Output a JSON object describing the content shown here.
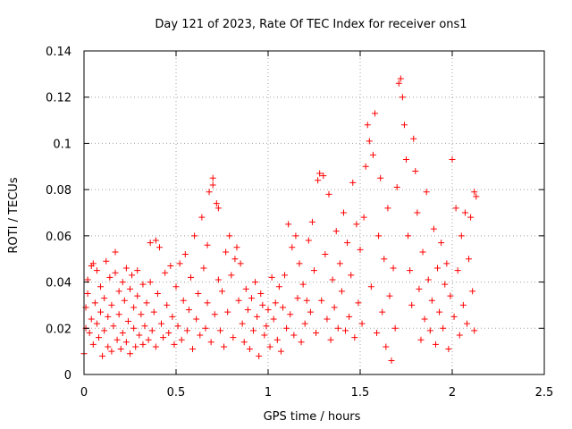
{
  "chart_data": {
    "type": "scatter",
    "title": "Day 121 of 2023, Rate Of TEC Index for receiver ons1",
    "xlabel": "GPS time / hours",
    "ylabel": "ROTI / TECUs",
    "xlim": [
      0,
      2.5
    ],
    "ylim": [
      0,
      0.14
    ],
    "xticks": [
      0,
      0.5,
      1,
      1.5,
      2,
      2.5
    ],
    "xtick_labels": [
      "0",
      "0.5",
      "1",
      "1.5",
      "2",
      "2.5"
    ],
    "yticks": [
      0,
      0.02,
      0.04,
      0.06,
      0.08,
      0.1,
      0.12,
      0.14
    ],
    "ytick_labels": [
      "0",
      "0.02",
      "0.04",
      "0.06",
      "0.08",
      "0.1",
      "0.12",
      "0.14"
    ],
    "grid": true,
    "marker": "+",
    "color": "#ff0000",
    "series": [
      {
        "points": [
          [
            0.0,
            0.009
          ],
          [
            0.01,
            0.02
          ],
          [
            0.01,
            0.029
          ],
          [
            0.02,
            0.035
          ],
          [
            0.02,
            0.041
          ],
          [
            0.03,
            0.018
          ],
          [
            0.04,
            0.024
          ],
          [
            0.04,
            0.047
          ],
          [
            0.05,
            0.048
          ],
          [
            0.05,
            0.013
          ],
          [
            0.06,
            0.031
          ],
          [
            0.07,
            0.022
          ],
          [
            0.07,
            0.045
          ],
          [
            0.08,
            0.016
          ],
          [
            0.09,
            0.027
          ],
          [
            0.09,
            0.038
          ],
          [
            0.1,
            0.008
          ],
          [
            0.11,
            0.019
          ],
          [
            0.11,
            0.033
          ],
          [
            0.12,
            0.049
          ],
          [
            0.13,
            0.012
          ],
          [
            0.13,
            0.025
          ],
          [
            0.14,
            0.042
          ],
          [
            0.15,
            0.01
          ],
          [
            0.15,
            0.03
          ],
          [
            0.16,
            0.021
          ],
          [
            0.17,
            0.044
          ],
          [
            0.17,
            0.053
          ],
          [
            0.18,
            0.015
          ],
          [
            0.19,
            0.036
          ],
          [
            0.19,
            0.026
          ],
          [
            0.2,
            0.011
          ],
          [
            0.21,
            0.04
          ],
          [
            0.21,
            0.018
          ],
          [
            0.22,
            0.032
          ],
          [
            0.23,
            0.046
          ],
          [
            0.23,
            0.014
          ],
          [
            0.24,
            0.023
          ],
          [
            0.25,
            0.037
          ],
          [
            0.25,
            0.009
          ],
          [
            0.26,
            0.043
          ],
          [
            0.27,
            0.02
          ],
          [
            0.27,
            0.029
          ],
          [
            0.28,
            0.012
          ],
          [
            0.29,
            0.034
          ],
          [
            0.29,
            0.045
          ],
          [
            0.3,
            0.017
          ],
          [
            0.31,
            0.026
          ],
          [
            0.32,
            0.039
          ],
          [
            0.32,
            0.013
          ],
          [
            0.33,
            0.021
          ],
          [
            0.34,
            0.031
          ],
          [
            0.35,
            0.015
          ],
          [
            0.36,
            0.04
          ],
          [
            0.36,
            0.057
          ],
          [
            0.37,
            0.019
          ],
          [
            0.38,
            0.027
          ],
          [
            0.39,
            0.012
          ],
          [
            0.39,
            0.058
          ],
          [
            0.4,
            0.035
          ],
          [
            0.41,
            0.055
          ],
          [
            0.42,
            0.022
          ],
          [
            0.43,
            0.016
          ],
          [
            0.44,
            0.044
          ],
          [
            0.45,
            0.03
          ],
          [
            0.46,
            0.018
          ],
          [
            0.47,
            0.047
          ],
          [
            0.48,
            0.025
          ],
          [
            0.49,
            0.013
          ],
          [
            0.5,
            0.038
          ],
          [
            0.51,
            0.021
          ],
          [
            0.52,
            0.048
          ],
          [
            0.53,
            0.015
          ],
          [
            0.54,
            0.032
          ],
          [
            0.55,
            0.052
          ],
          [
            0.56,
            0.019
          ],
          [
            0.57,
            0.028
          ],
          [
            0.58,
            0.042
          ],
          [
            0.59,
            0.011
          ],
          [
            0.6,
            0.06
          ],
          [
            0.61,
            0.024
          ],
          [
            0.62,
            0.035
          ],
          [
            0.63,
            0.017
          ],
          [
            0.64,
            0.068
          ],
          [
            0.65,
            0.046
          ],
          [
            0.66,
            0.02
          ],
          [
            0.67,
            0.031
          ],
          [
            0.67,
            0.056
          ],
          [
            0.68,
            0.079
          ],
          [
            0.69,
            0.014
          ],
          [
            0.7,
            0.085
          ],
          [
            0.7,
            0.082
          ],
          [
            0.71,
            0.026
          ],
          [
            0.72,
            0.074
          ],
          [
            0.73,
            0.072
          ],
          [
            0.73,
            0.041
          ],
          [
            0.74,
            0.019
          ],
          [
            0.75,
            0.036
          ],
          [
            0.76,
            0.012
          ],
          [
            0.77,
            0.053
          ],
          [
            0.78,
            0.027
          ],
          [
            0.79,
            0.06
          ],
          [
            0.8,
            0.043
          ],
          [
            0.81,
            0.016
          ],
          [
            0.82,
            0.05
          ],
          [
            0.83,
            0.055
          ],
          [
            0.84,
            0.032
          ],
          [
            0.85,
            0.048
          ],
          [
            0.86,
            0.022
          ],
          [
            0.87,
            0.014
          ],
          [
            0.88,
            0.037
          ],
          [
            0.89,
            0.028
          ],
          [
            0.9,
            0.011
          ],
          [
            0.91,
            0.033
          ],
          [
            0.92,
            0.019
          ],
          [
            0.93,
            0.04
          ],
          [
            0.94,
            0.025
          ],
          [
            0.95,
            0.008
          ],
          [
            0.96,
            0.035
          ],
          [
            0.97,
            0.03
          ],
          [
            0.98,
            0.017
          ],
          [
            0.99,
            0.021
          ],
          [
            1.0,
            0.028
          ],
          [
            1.01,
            0.012
          ],
          [
            1.02,
            0.042
          ],
          [
            1.03,
            0.024
          ],
          [
            1.04,
            0.031
          ],
          [
            1.05,
            0.015
          ],
          [
            1.06,
            0.038
          ],
          [
            1.07,
            0.01
          ],
          [
            1.08,
            0.029
          ],
          [
            1.09,
            0.043
          ],
          [
            1.1,
            0.02
          ],
          [
            1.11,
            0.065
          ],
          [
            1.12,
            0.026
          ],
          [
            1.13,
            0.055
          ],
          [
            1.14,
            0.017
          ],
          [
            1.15,
            0.06
          ],
          [
            1.16,
            0.033
          ],
          [
            1.17,
            0.048
          ],
          [
            1.18,
            0.014
          ],
          [
            1.19,
            0.039
          ],
          [
            1.2,
            0.022
          ],
          [
            1.21,
            0.032
          ],
          [
            1.22,
            0.058
          ],
          [
            1.23,
            0.027
          ],
          [
            1.24,
            0.066
          ],
          [
            1.25,
            0.045
          ],
          [
            1.26,
            0.018
          ],
          [
            1.27,
            0.084
          ],
          [
            1.28,
            0.087
          ],
          [
            1.29,
            0.032
          ],
          [
            1.3,
            0.086
          ],
          [
            1.31,
            0.052
          ],
          [
            1.32,
            0.024
          ],
          [
            1.33,
            0.078
          ],
          [
            1.34,
            0.015
          ],
          [
            1.35,
            0.041
          ],
          [
            1.36,
            0.029
          ],
          [
            1.37,
            0.062
          ],
          [
            1.38,
            0.02
          ],
          [
            1.39,
            0.048
          ],
          [
            1.4,
            0.036
          ],
          [
            1.41,
            0.07
          ],
          [
            1.42,
            0.019
          ],
          [
            1.43,
            0.057
          ],
          [
            1.44,
            0.025
          ],
          [
            1.45,
            0.043
          ],
          [
            1.46,
            0.083
          ],
          [
            1.47,
            0.016
          ],
          [
            1.48,
            0.065
          ],
          [
            1.49,
            0.031
          ],
          [
            1.5,
            0.054
          ],
          [
            1.51,
            0.022
          ],
          [
            1.52,
            0.068
          ],
          [
            1.53,
            0.09
          ],
          [
            1.54,
            0.108
          ],
          [
            1.55,
            0.101
          ],
          [
            1.56,
            0.038
          ],
          [
            1.57,
            0.095
          ],
          [
            1.58,
            0.113
          ],
          [
            1.59,
            0.018
          ],
          [
            1.6,
            0.06
          ],
          [
            1.61,
            0.085
          ],
          [
            1.62,
            0.027
          ],
          [
            1.63,
            0.05
          ],
          [
            1.64,
            0.012
          ],
          [
            1.65,
            0.072
          ],
          [
            1.66,
            0.034
          ],
          [
            1.67,
            0.006
          ],
          [
            1.68,
            0.046
          ],
          [
            1.69,
            0.02
          ],
          [
            1.7,
            0.081
          ],
          [
            1.71,
            0.126
          ],
          [
            1.72,
            0.128
          ],
          [
            1.73,
            0.12
          ],
          [
            1.74,
            0.108
          ],
          [
            1.75,
            0.093
          ],
          [
            1.76,
            0.06
          ],
          [
            1.77,
            0.045
          ],
          [
            1.78,
            0.03
          ],
          [
            1.79,
            0.102
          ],
          [
            1.8,
            0.088
          ],
          [
            1.81,
            0.07
          ],
          [
            1.82,
            0.037
          ],
          [
            1.83,
            0.015
          ],
          [
            1.84,
            0.053
          ],
          [
            1.85,
            0.024
          ],
          [
            1.86,
            0.079
          ],
          [
            1.87,
            0.041
          ],
          [
            1.88,
            0.019
          ],
          [
            1.89,
            0.032
          ],
          [
            1.9,
            0.063
          ],
          [
            1.91,
            0.013
          ],
          [
            1.92,
            0.046
          ],
          [
            1.93,
            0.027
          ],
          [
            1.94,
            0.057
          ],
          [
            1.95,
            0.02
          ],
          [
            1.96,
            0.039
          ],
          [
            1.97,
            0.048
          ],
          [
            1.98,
            0.011
          ],
          [
            1.99,
            0.034
          ],
          [
            2.0,
            0.093
          ],
          [
            2.01,
            0.025
          ],
          [
            2.02,
            0.072
          ],
          [
            2.03,
            0.045
          ],
          [
            2.04,
            0.017
          ],
          [
            2.05,
            0.06
          ],
          [
            2.06,
            0.03
          ],
          [
            2.07,
            0.07
          ],
          [
            2.08,
            0.022
          ],
          [
            2.09,
            0.05
          ],
          [
            2.1,
            0.068
          ],
          [
            2.11,
            0.036
          ],
          [
            2.12,
            0.079
          ],
          [
            2.12,
            0.019
          ],
          [
            2.13,
            0.077
          ]
        ]
      }
    ]
  }
}
